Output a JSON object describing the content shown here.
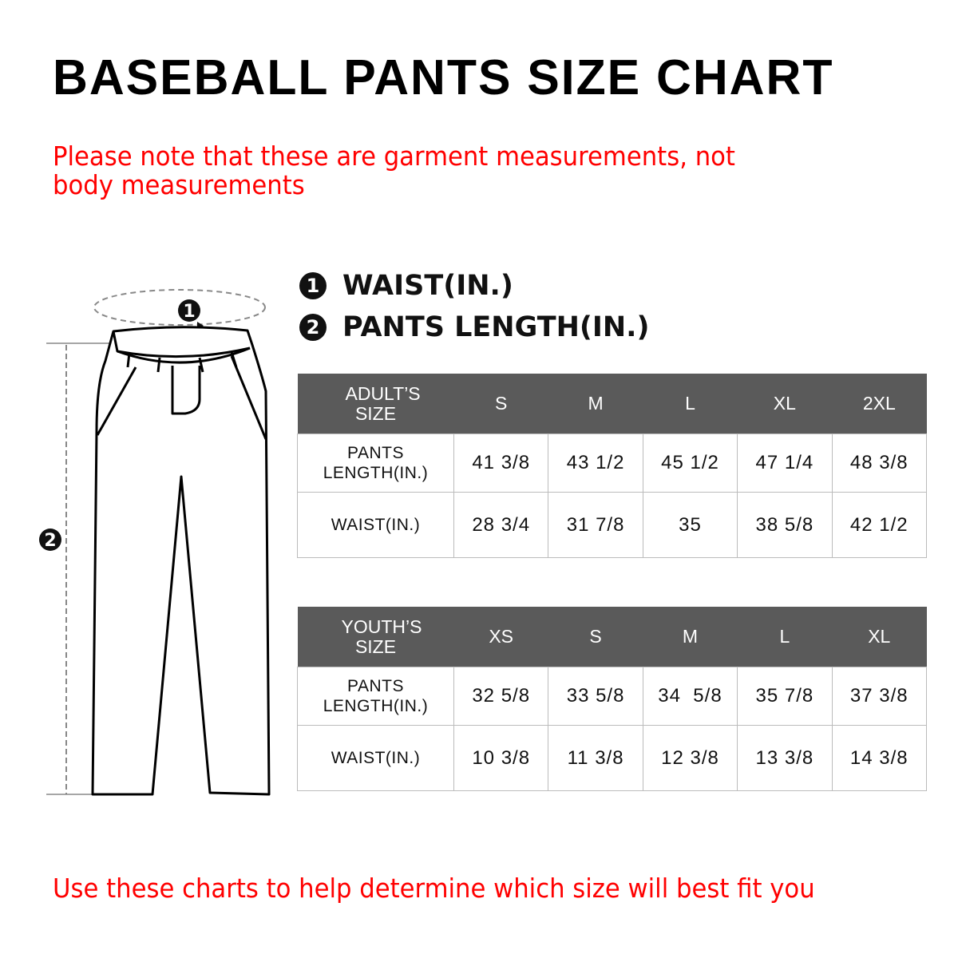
{
  "title": "BASEBALL PANTS SIZE CHART",
  "note": "Please note that these are garment measurements, not body measurements",
  "legend": [
    {
      "badge": "1",
      "label": "WAIST(IN.)"
    },
    {
      "badge": "2",
      "label": "PANTS LENGTH(IN.)"
    }
  ],
  "diagram": {
    "badge_waist": "1",
    "badge_length": "2"
  },
  "adult": {
    "header": [
      "ADULT’S SIZE",
      "S",
      "M",
      "L",
      "XL",
      "2XL"
    ],
    "rows": [
      {
        "label": "PANTS LENGTH(IN.)",
        "values": [
          "41 3/8",
          "43 1/2",
          "45 1/2",
          "47 1/4",
          "48 3/8"
        ]
      },
      {
        "label": "WAIST(IN.)",
        "values": [
          "28 3/4",
          "31 7/8",
          "35",
          "38 5/8",
          "42 1/2"
        ]
      }
    ]
  },
  "youth": {
    "header": [
      "YOUTH’S SIZE",
      "XS",
      "S",
      "M",
      "L",
      "XL"
    ],
    "rows": [
      {
        "label": "PANTS LENGTH(IN.)",
        "values": [
          "32 5/8",
          "33 5/8",
          "34  5/8",
          "35 7/8",
          "37 3/8"
        ]
      },
      {
        "label": "WAIST(IN.)",
        "values": [
          "10 3/8",
          "11 3/8",
          "12 3/8",
          "13 3/8",
          "14 3/8"
        ]
      }
    ]
  },
  "footer": "Use these charts to help determine which size will best fit you",
  "colors": {
    "title": "#000000",
    "note": "#ff0000",
    "table_header": "#5a5a5a",
    "border": "#bbbbbb"
  }
}
